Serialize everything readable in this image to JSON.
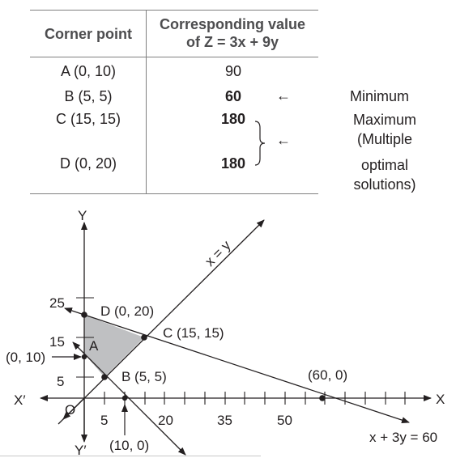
{
  "table": {
    "header": {
      "col1": "Corner point",
      "col2_line1": "Corresponding value",
      "col2_line2": "of Z = 3x + 9y"
    },
    "rows": [
      {
        "point": "A (0, 10)",
        "value": "90",
        "bold": false,
        "arrow": "",
        "note": ""
      },
      {
        "point": "B (5, 5)",
        "value": "60",
        "bold": true,
        "arrow": "←",
        "note": "Minimum"
      },
      {
        "point": "C (15, 15)",
        "value": "180",
        "bold": true,
        "arrow": "",
        "note": ""
      },
      {
        "point": "D (0, 20)",
        "value": "180",
        "bold": true,
        "arrow": "",
        "note": ""
      }
    ],
    "brace_arrow": "←",
    "max_note": [
      "Maximum",
      "(Multiple",
      "optimal",
      "solutions)"
    ]
  },
  "graph": {
    "axis_labels": {
      "y": "Y",
      "y_neg": "Y′",
      "x": "X",
      "x_neg": "X′",
      "origin": "O"
    },
    "y_ticks": [
      "25",
      "15",
      "5"
    ],
    "x_ticks": [
      "5",
      "20",
      "35",
      "50"
    ],
    "point_labels": {
      "D": "D (0, 20)",
      "C": "C (15, 15)",
      "B": "B (5, 5)",
      "A": "A",
      "A_coord": "(0, 10)",
      "xint1": "(10, 0)",
      "xint2": "(60, 0)"
    },
    "line_labels": {
      "xy": "x = y",
      "c2": "x + 3y = 60"
    },
    "colors": {
      "feasible_region": "#bfc0c2",
      "ink": "#231f20",
      "rule": "#7f7f7f"
    }
  }
}
